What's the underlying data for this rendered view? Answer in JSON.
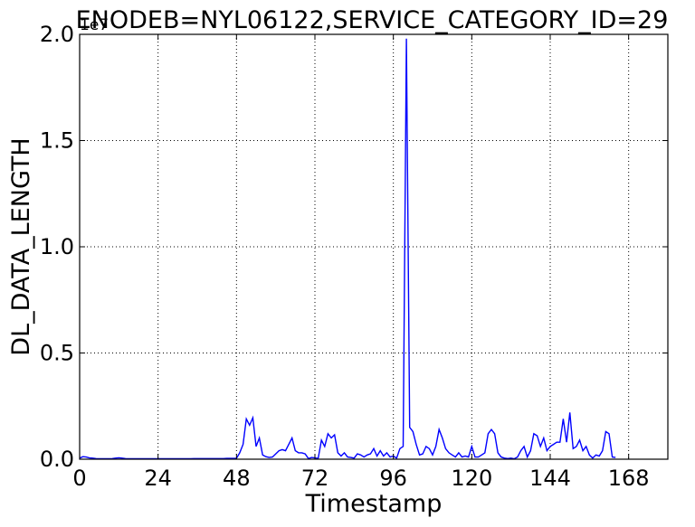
{
  "chart_data": {
    "type": "line",
    "title": "ENODEB=NYL06122,SERVICE_CATEGORY_ID=29",
    "xlabel": "Timestamp",
    "ylabel": "DL_DATA_LENGTH",
    "y_offset_label": "1e7",
    "xlim": [
      0,
      180
    ],
    "ylim": [
      0,
      2.0
    ],
    "x_ticks": [
      0,
      24,
      48,
      72,
      96,
      120,
      144,
      168
    ],
    "y_ticks": [
      "0.0",
      "0.5",
      "1.0",
      "1.5",
      "2.0"
    ],
    "y_tick_values": [
      0,
      0.5,
      1.0,
      1.5,
      2.0
    ],
    "grid": true,
    "series": [
      {
        "color": "#0000ff",
        "x": [
          0,
          1,
          2,
          3,
          4,
          5,
          6,
          7,
          8,
          9,
          10,
          11,
          12,
          13,
          14,
          15,
          16,
          17,
          18,
          19,
          20,
          21,
          22,
          23,
          24,
          25,
          26,
          27,
          28,
          29,
          30,
          31,
          32,
          33,
          34,
          35,
          36,
          37,
          38,
          39,
          40,
          41,
          42,
          43,
          44,
          45,
          46,
          47,
          48,
          49,
          50,
          51,
          52,
          53,
          54,
          55,
          56,
          57,
          58,
          59,
          60,
          61,
          62,
          63,
          64,
          65,
          66,
          67,
          68,
          69,
          70,
          71,
          72,
          73,
          74,
          75,
          76,
          77,
          78,
          79,
          80,
          81,
          82,
          83,
          84,
          85,
          86,
          87,
          88,
          89,
          90,
          91,
          92,
          93,
          94,
          95,
          96,
          97,
          98,
          99,
          100,
          101,
          102,
          103,
          104,
          105,
          106,
          107,
          108,
          109,
          110,
          111,
          112,
          113,
          114,
          115,
          116,
          117,
          118,
          119,
          120,
          121,
          122,
          123,
          124,
          125,
          126,
          127,
          128,
          129,
          130,
          131,
          132,
          133,
          134,
          135,
          136,
          137,
          138,
          139,
          140,
          141,
          142,
          143,
          144,
          145,
          146,
          147,
          148,
          149,
          150,
          151,
          152,
          153,
          154,
          155,
          156,
          157,
          158,
          159,
          160,
          161,
          162,
          163,
          164
        ],
        "values": [
          0.005,
          0.012,
          0.01,
          0.006,
          0.005,
          0.003,
          0.002,
          0.002,
          0.002,
          0.002,
          0.003,
          0.005,
          0.007,
          0.005,
          0.003,
          0.002,
          0.002,
          0.002,
          0.002,
          0.002,
          0.002,
          0.002,
          0.002,
          0.002,
          0.002,
          0.002,
          0.002,
          0.002,
          0.002,
          0.002,
          0.002,
          0.002,
          0.002,
          0.002,
          0.002,
          0.003,
          0.003,
          0.003,
          0.003,
          0.003,
          0.003,
          0.003,
          0.003,
          0.003,
          0.003,
          0.004,
          0.004,
          0.004,
          0.004,
          0.03,
          0.07,
          0.19,
          0.16,
          0.195,
          0.06,
          0.1,
          0.02,
          0.012,
          0.008,
          0.01,
          0.025,
          0.04,
          0.045,
          0.04,
          0.07,
          0.1,
          0.04,
          0.03,
          0.03,
          0.025,
          0.003,
          0.008,
          0.006,
          0.004,
          0.09,
          0.06,
          0.12,
          0.1,
          0.115,
          0.03,
          0.015,
          0.03,
          0.01,
          0.008,
          0.005,
          0.025,
          0.02,
          0.01,
          0.02,
          0.025,
          0.05,
          0.015,
          0.04,
          0.015,
          0.03,
          0.01,
          0.015,
          0.005,
          0.05,
          0.06,
          1.98,
          0.15,
          0.13,
          0.07,
          0.02,
          0.025,
          0.06,
          0.05,
          0.02,
          0.06,
          0.14,
          0.1,
          0.05,
          0.03,
          0.02,
          0.01,
          0.03,
          0.01,
          0.015,
          0.01,
          0.06,
          0.01,
          0.01,
          0.02,
          0.03,
          0.12,
          0.14,
          0.12,
          0.03,
          0.01,
          0.005,
          0.003,
          0.005,
          0.002,
          0.01,
          0.04,
          0.06,
          0.01,
          0.04,
          0.12,
          0.11,
          0.06,
          0.1,
          0.04,
          0.06,
          0.07,
          0.08,
          0.08,
          0.19,
          0.08,
          0.22,
          0.05,
          0.06,
          0.09,
          0.04,
          0.06,
          0.02,
          0.005,
          0.02,
          0.015,
          0.04,
          0.13,
          0.12,
          0.01,
          0.008
        ]
      }
    ]
  }
}
